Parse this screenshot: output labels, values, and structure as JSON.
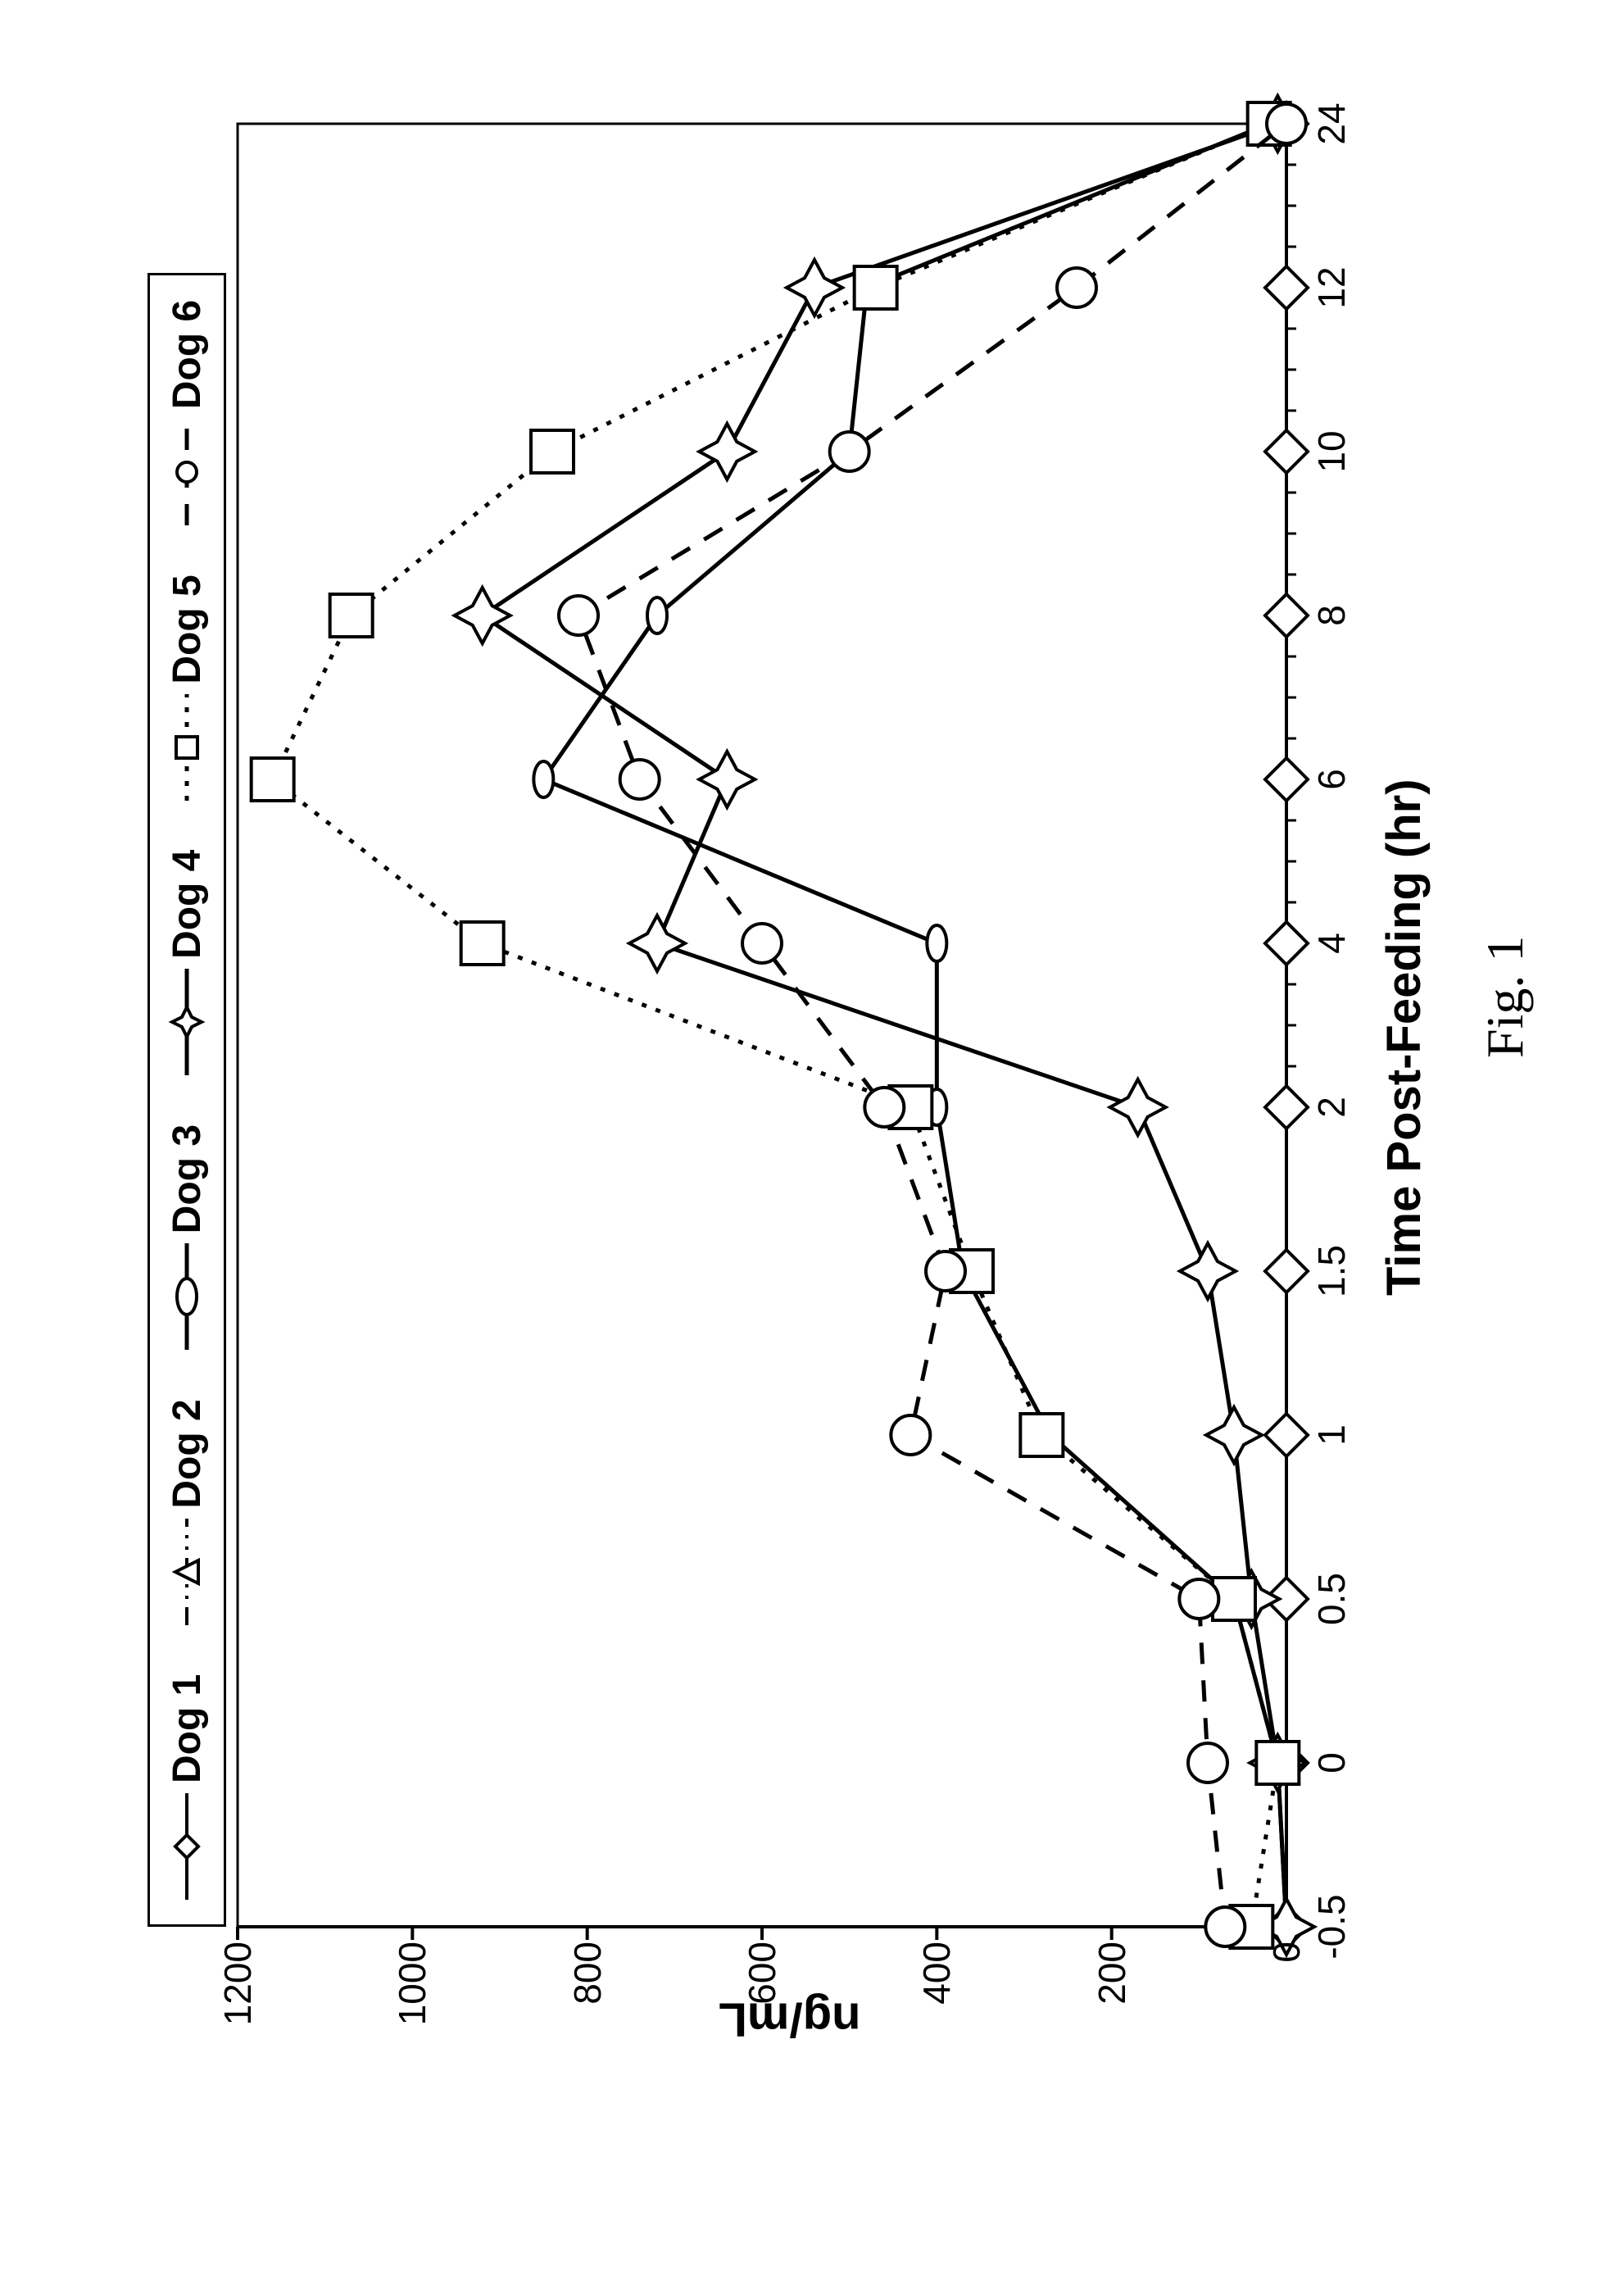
{
  "chart": {
    "type": "line",
    "caption": "Fig. 1",
    "xlabel": "Time Post-Feeding (hr)",
    "ylabel": "ng/mL",
    "background_color": "#ffffff",
    "axis_color": "#000000",
    "axis_linewidth": 4,
    "tick_fontsize": 46,
    "label_fontsize": 58,
    "label_fontweight": "bold",
    "xlim": [
      -0.5,
      24
    ],
    "ylim": [
      0,
      1200
    ],
    "yticks": [
      0,
      200,
      400,
      600,
      800,
      1000,
      1200
    ],
    "xticks_major": [
      -0.5,
      0,
      0.5,
      1,
      1.5,
      2,
      4,
      6,
      8,
      10,
      12,
      24
    ],
    "xticks_minor_between_2_and_24_step": 0.5,
    "x_data": [
      -0.5,
      0,
      0.5,
      1,
      1.5,
      2,
      4,
      6,
      8,
      10,
      12,
      24
    ],
    "x_categorical_spacing": true,
    "series": [
      {
        "name": "Dog 1",
        "marker": "diamond",
        "marker_size": 26,
        "line_style": "solid",
        "line_width": 4,
        "color": "#000000",
        "fill": "#ffffff",
        "y": [
          0,
          0,
          0,
          0,
          0,
          0,
          0,
          0,
          0,
          0,
          0,
          0
        ]
      },
      {
        "name": "Dog 2",
        "marker": "triangle",
        "marker_size": 24,
        "line_style": "dash-dot-dot",
        "line_width": 4,
        "color": "#000000",
        "fill": "#ffffff",
        "y": null
      },
      {
        "name": "Dog 3",
        "marker": "ellipse",
        "marker_size_w": 44,
        "marker_size_h": 24,
        "line_style": "solid",
        "line_width": 5,
        "color": "#000000",
        "fill": "#ffffff",
        "y": [
          0,
          10,
          60,
          270,
          370,
          400,
          400,
          850,
          720,
          500,
          480,
          20
        ]
      },
      {
        "name": "Dog 4",
        "marker": "star4",
        "marker_size": 34,
        "line_style": "solid",
        "line_width": 5,
        "color": "#000000",
        "fill": "#ffffff",
        "y": [
          0,
          10,
          40,
          60,
          90,
          170,
          720,
          640,
          920,
          640,
          540,
          10
        ]
      },
      {
        "name": "Dog 5",
        "marker": "square",
        "marker_size": 26,
        "line_style": "dotted",
        "line_width": 5,
        "color": "#000000",
        "fill": "#ffffff",
        "y": [
          40,
          10,
          60,
          280,
          360,
          430,
          920,
          1160,
          1070,
          840,
          470,
          20
        ]
      },
      {
        "name": "Dog 6",
        "marker": "circle",
        "marker_size": 24,
        "line_style": "dashed",
        "line_width": 5,
        "color": "#000000",
        "fill": "#ffffff",
        "y": [
          70,
          90,
          100,
          430,
          390,
          460,
          600,
          740,
          810,
          500,
          240,
          0
        ]
      }
    ],
    "legend": {
      "position": "top",
      "border_color": "#000000",
      "border_width": 3,
      "fontsize": 48,
      "fontweight": "bold"
    }
  }
}
